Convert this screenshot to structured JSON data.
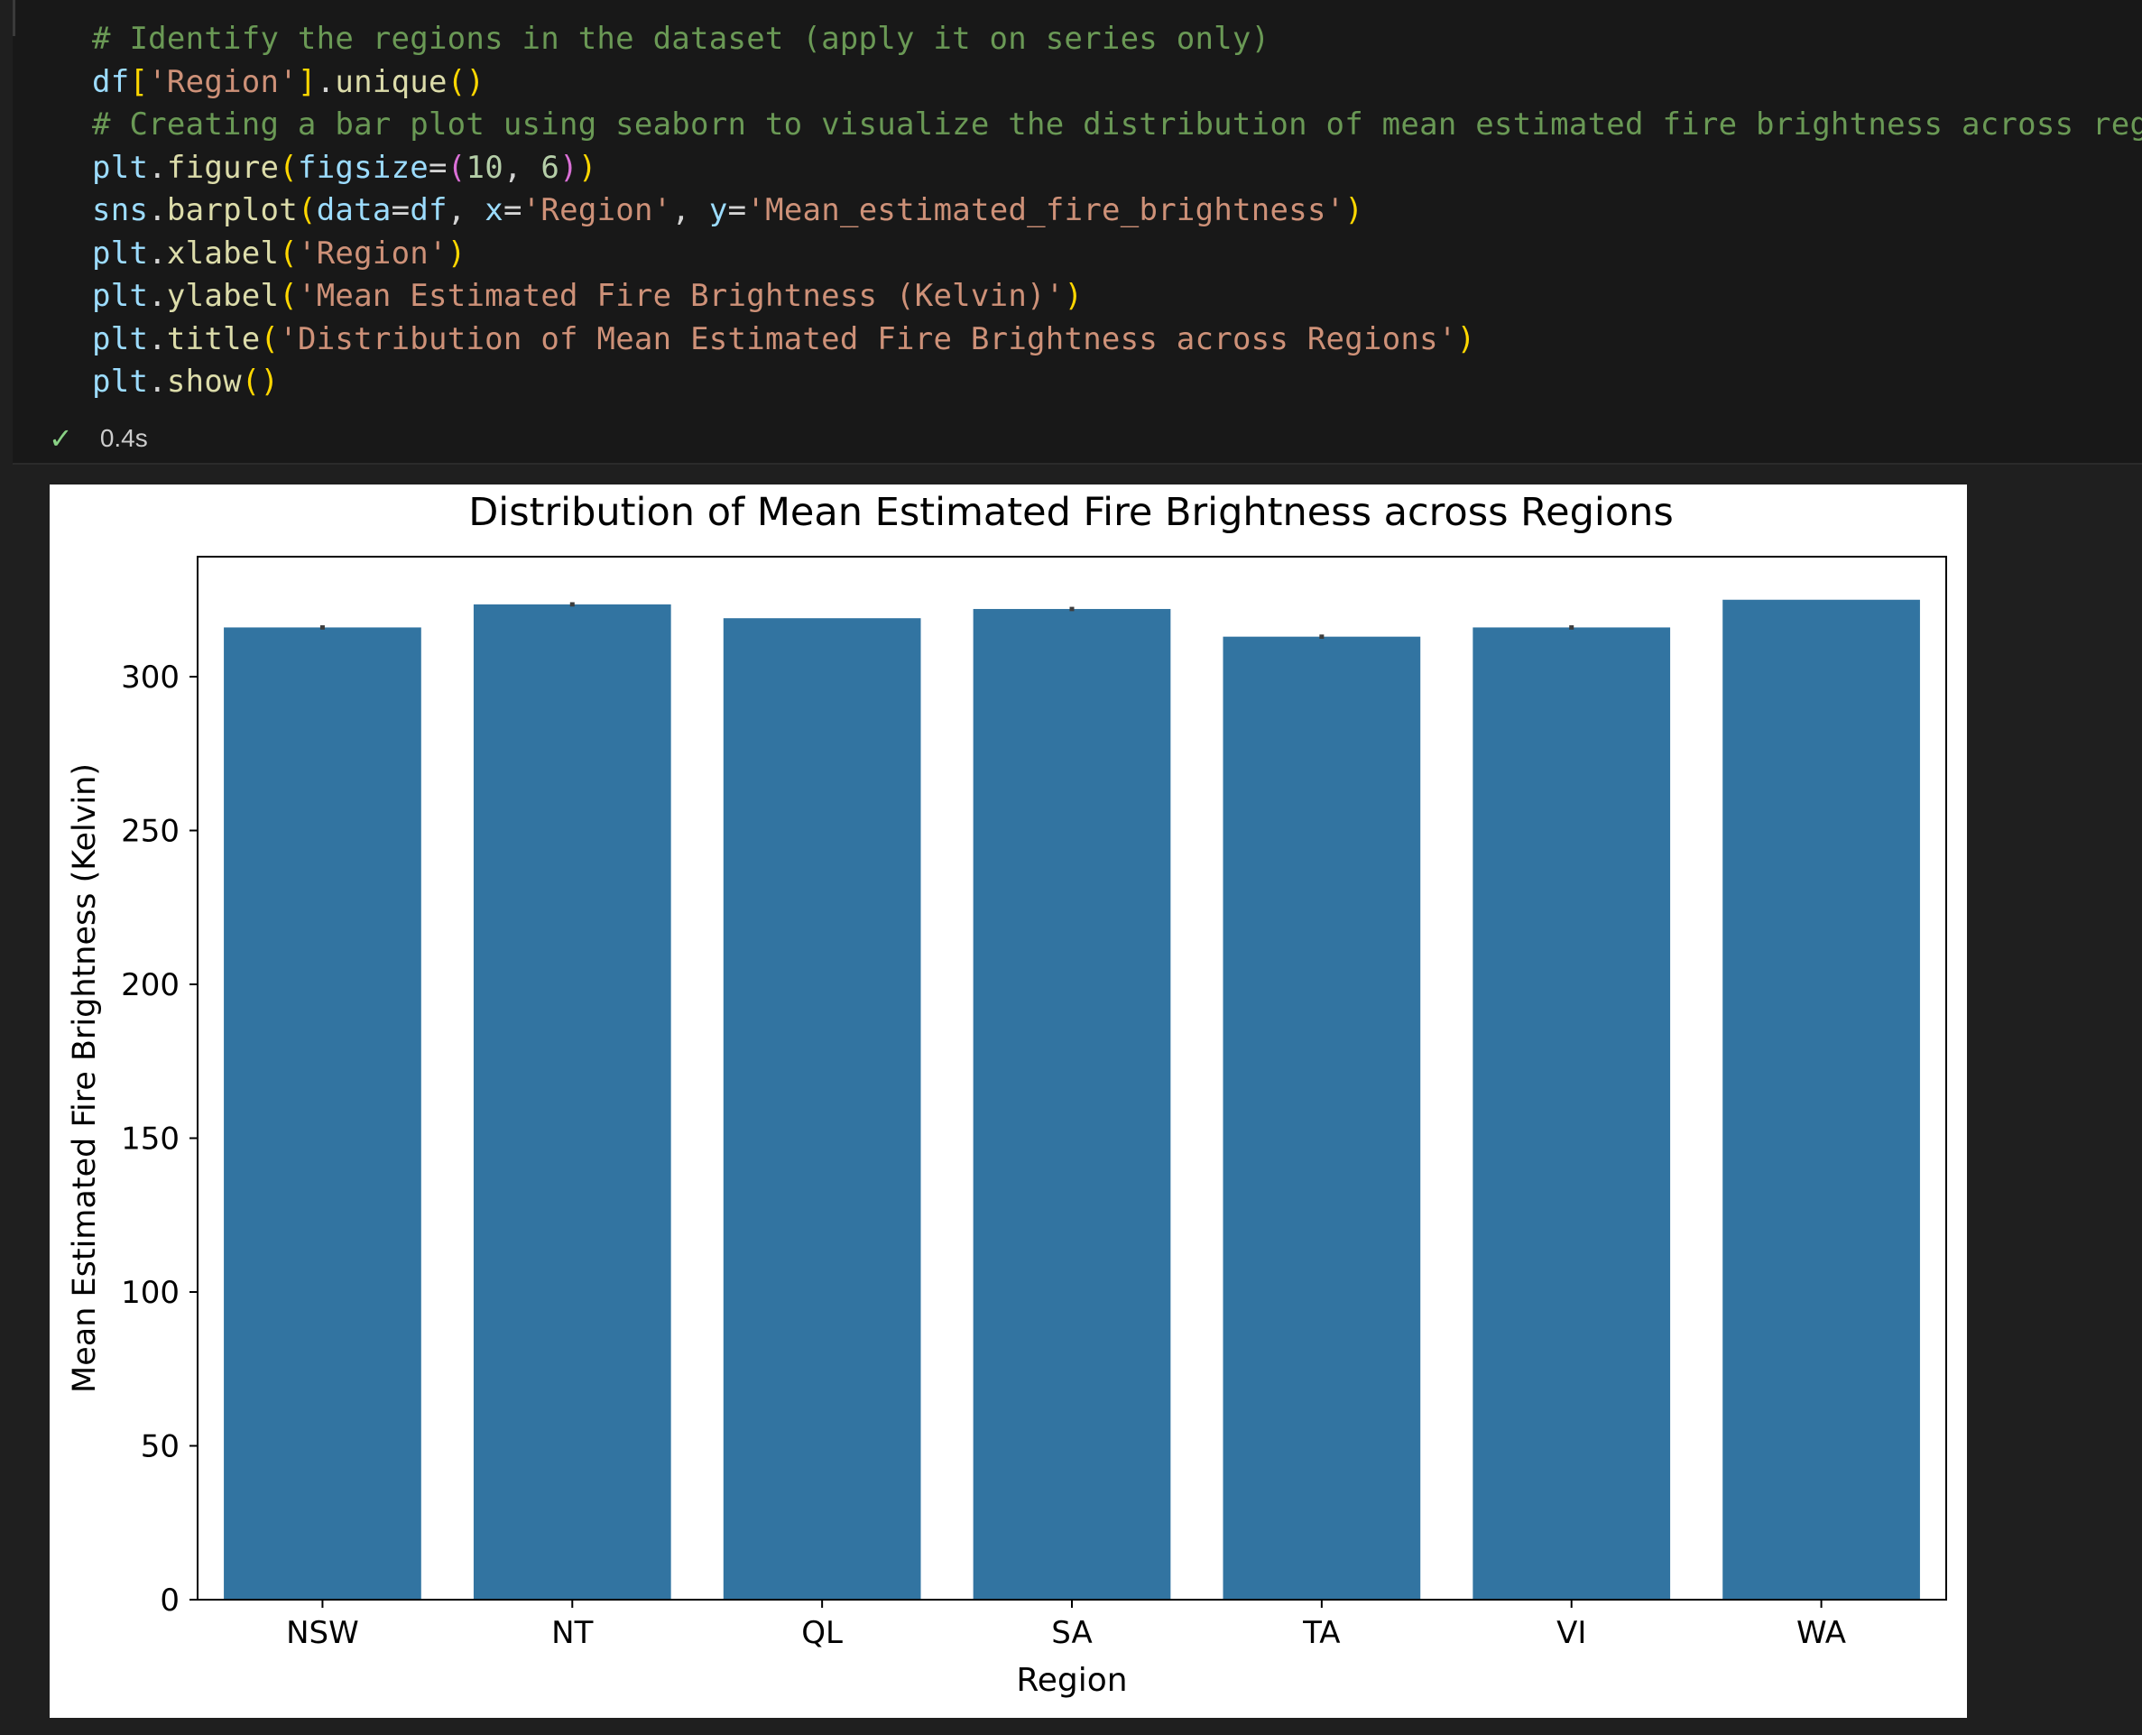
{
  "code_cell": {
    "lines": [
      [
        {
          "t": "# Identify the regions in the dataset (apply it on series only)",
          "c": "comment"
        }
      ],
      [
        {
          "t": "df",
          "c": "var"
        },
        {
          "t": "[",
          "c": "p1"
        },
        {
          "t": "'Region'",
          "c": "str"
        },
        {
          "t": "]",
          "c": "p1"
        },
        {
          "t": ".",
          "c": "op"
        },
        {
          "t": "unique",
          "c": "fn"
        },
        {
          "t": "()",
          "c": "p1"
        }
      ],
      [
        {
          "t": "# Creating a bar plot using seaborn to visualize the distribution of mean estimated fire brightness across regions",
          "c": "comment"
        }
      ],
      [
        {
          "t": "plt",
          "c": "var"
        },
        {
          "t": ".",
          "c": "op"
        },
        {
          "t": "figure",
          "c": "fn"
        },
        {
          "t": "(",
          "c": "p1"
        },
        {
          "t": "figsize",
          "c": "var"
        },
        {
          "t": "=",
          "c": "op"
        },
        {
          "t": "(",
          "c": "p2"
        },
        {
          "t": "10",
          "c": "num"
        },
        {
          "t": ", ",
          "c": "op"
        },
        {
          "t": "6",
          "c": "num"
        },
        {
          "t": ")",
          "c": "p2"
        },
        {
          "t": ")",
          "c": "p1"
        }
      ],
      [
        {
          "t": "sns",
          "c": "var"
        },
        {
          "t": ".",
          "c": "op"
        },
        {
          "t": "barplot",
          "c": "fn"
        },
        {
          "t": "(",
          "c": "p1"
        },
        {
          "t": "data",
          "c": "var"
        },
        {
          "t": "=",
          "c": "op"
        },
        {
          "t": "df",
          "c": "var"
        },
        {
          "t": ", ",
          "c": "op"
        },
        {
          "t": "x",
          "c": "var"
        },
        {
          "t": "=",
          "c": "op"
        },
        {
          "t": "'Region'",
          "c": "str"
        },
        {
          "t": ", ",
          "c": "op"
        },
        {
          "t": "y",
          "c": "var"
        },
        {
          "t": "=",
          "c": "op"
        },
        {
          "t": "'Mean_estimated_fire_brightness'",
          "c": "str"
        },
        {
          "t": ")",
          "c": "p1"
        }
      ],
      [
        {
          "t": "plt",
          "c": "var"
        },
        {
          "t": ".",
          "c": "op"
        },
        {
          "t": "xlabel",
          "c": "fn"
        },
        {
          "t": "(",
          "c": "p1"
        },
        {
          "t": "'Region'",
          "c": "str"
        },
        {
          "t": ")",
          "c": "p1"
        }
      ],
      [
        {
          "t": "plt",
          "c": "var"
        },
        {
          "t": ".",
          "c": "op"
        },
        {
          "t": "ylabel",
          "c": "fn"
        },
        {
          "t": "(",
          "c": "p1"
        },
        {
          "t": "'Mean Estimated Fire Brightness (Kelvin)'",
          "c": "str"
        },
        {
          "t": ")",
          "c": "p1"
        }
      ],
      [
        {
          "t": "plt",
          "c": "var"
        },
        {
          "t": ".",
          "c": "op"
        },
        {
          "t": "title",
          "c": "fn"
        },
        {
          "t": "(",
          "c": "p1"
        },
        {
          "t": "'Distribution of Mean Estimated Fire Brightness across Regions'",
          "c": "str"
        },
        {
          "t": ")",
          "c": "p1"
        }
      ],
      [
        {
          "t": "plt",
          "c": "var"
        },
        {
          "t": ".",
          "c": "op"
        },
        {
          "t": "show",
          "c": "fn"
        },
        {
          "t": "()",
          "c": "p1"
        }
      ]
    ]
  },
  "status": {
    "icon": "check-icon",
    "glyph": "✓",
    "time": "0.4s"
  },
  "colors": {
    "bar": "#3274a1",
    "error_bar": "#3d3d3d",
    "check": "#89d185"
  },
  "chart_data": {
    "type": "bar",
    "title": "Distribution of Mean Estimated Fire Brightness across Regions",
    "xlabel": "Region",
    "ylabel": "Mean Estimated Fire Brightness (Kelvin)",
    "categories": [
      "NSW",
      "NT",
      "QL",
      "SA",
      "TA",
      "VI",
      "WA"
    ],
    "values": [
      316,
      323.5,
      319,
      322,
      313,
      316,
      325
    ],
    "error_bars": [
      [
        315.3,
        316.7
      ],
      [
        322.8,
        324.2
      ],
      null,
      [
        321.3,
        322.7
      ],
      [
        312.3,
        313.7
      ],
      [
        315.3,
        316.7
      ],
      null
    ],
    "ylim": [
      0,
      339
    ],
    "yticks": [
      0,
      50,
      100,
      150,
      200,
      250,
      300
    ],
    "grid": false
  }
}
